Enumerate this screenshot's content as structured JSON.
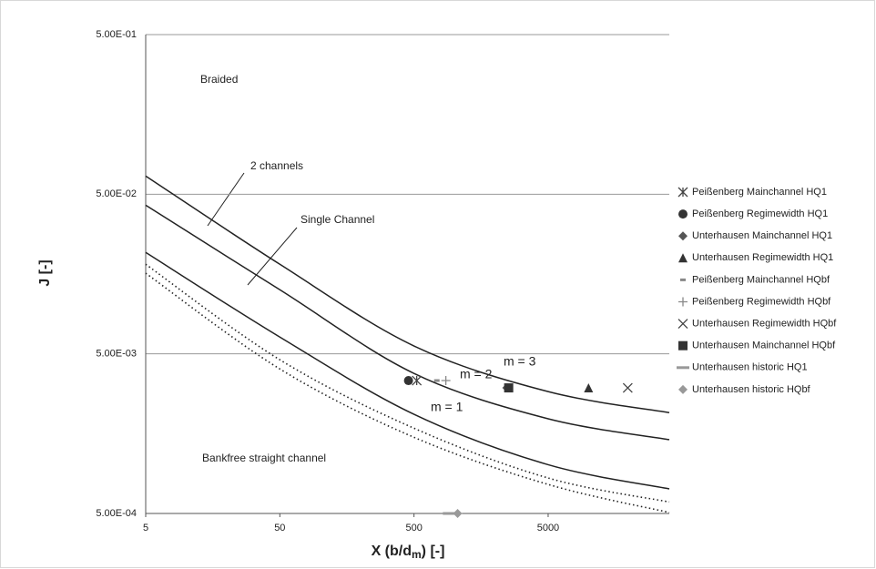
{
  "chart_data": {
    "type": "scatter",
    "x_label": [
      "X (b/d",
      "m",
      ") [-]"
    ],
    "y_label": "J [-]",
    "xscale": "log",
    "yscale": "log",
    "xlim": [
      5,
      40000
    ],
    "ylim": [
      0.0005,
      0.5
    ],
    "xticks": [
      5,
      50,
      500,
      5000
    ],
    "yticks": [
      {
        "value": 0.0005,
        "label": "5.00E-04"
      },
      {
        "value": 0.005,
        "label": "5.00E-03"
      },
      {
        "value": 0.05,
        "label": "5.00E-02"
      },
      {
        "value": 0.5,
        "label": "5.00E-01"
      }
    ],
    "grid": true,
    "legend": "right",
    "annotations": [
      "Braided",
      "2 channels",
      "Single Channel",
      "Bankfree straight channel"
    ],
    "curves": [
      {
        "label": "m = 3",
        "style": "solid",
        "x": [
          5,
          50,
          500,
          5000,
          40000
        ],
        "values": [
          0.065,
          0.0182,
          0.0056,
          0.0029,
          0.00214
        ]
      },
      {
        "label": "m = 2",
        "style": "solid",
        "x": [
          5,
          50,
          500,
          5000,
          40000
        ],
        "values": [
          0.0427,
          0.0126,
          0.00377,
          0.00196,
          0.00145
        ]
      },
      {
        "label": "m = 1",
        "style": "solid",
        "x": [
          5,
          50,
          500,
          5000,
          40000
        ],
        "values": [
          0.0216,
          0.00637,
          0.00209,
          0.00101,
          0.000713
        ]
      },
      {
        "style": "dotted",
        "x": [
          5,
          50,
          500,
          5000,
          40000
        ],
        "values": [
          0.0182,
          0.00459,
          0.00171,
          0.000834,
          0.00059
        ]
      },
      {
        "style": "dotted",
        "x": [
          5,
          50,
          500,
          5000,
          40000
        ],
        "values": [
          0.016,
          0.00402,
          0.0015,
          0.00076,
          0.000507
        ]
      }
    ],
    "series": [
      {
        "name": "Peißenberg Mainchannel HQ1",
        "marker": "asterisk",
        "color": "#444444",
        "x": [
          524
        ],
        "values": [
          0.0034
        ]
      },
      {
        "name": "Peißenberg Regimewidth HQ1",
        "marker": "circle",
        "color": "#333333",
        "x": [
          455
        ],
        "values": [
          0.0034
        ]
      },
      {
        "name": "Unterhausen Mainchannel HQ1",
        "marker": "diamond",
        "color": "#555555",
        "x": [
          2460
        ],
        "values": [
          0.00306
        ]
      },
      {
        "name": "Unterhausen Regimewidth HQ1",
        "marker": "triangle",
        "color": "#333333",
        "x": [
          10000
        ],
        "values": [
          0.00306
        ]
      },
      {
        "name": "Peißenberg Mainchannel HQbf",
        "marker": "dash",
        "color": "#888888",
        "x": [
          740
        ],
        "values": [
          0.0034
        ]
      },
      {
        "name": "Peißenberg Regimewidth HQbf",
        "marker": "plus",
        "color": "#888888",
        "x": [
          864
        ],
        "values": [
          0.0034
        ]
      },
      {
        "name": "Unterhausen Regimewidth HQbf",
        "marker": "cross",
        "color": "#444444",
        "x": [
          19600
        ],
        "values": [
          0.00306
        ]
      },
      {
        "name": "Unterhausen Mainchannel HQbf",
        "marker": "square",
        "color": "#333333",
        "x": [
          2540
        ],
        "values": [
          0.00306
        ]
      },
      {
        "name": "Unterhausen historic HQ1",
        "marker": "longdash",
        "color": "#999999",
        "x": [
          915
        ],
        "values": [
          0.0005
        ]
      },
      {
        "name": "Unterhausen historic HQbf",
        "marker": "diamond",
        "color": "#999999",
        "x": [
          1057
        ],
        "values": [
          0.0005
        ]
      }
    ]
  }
}
